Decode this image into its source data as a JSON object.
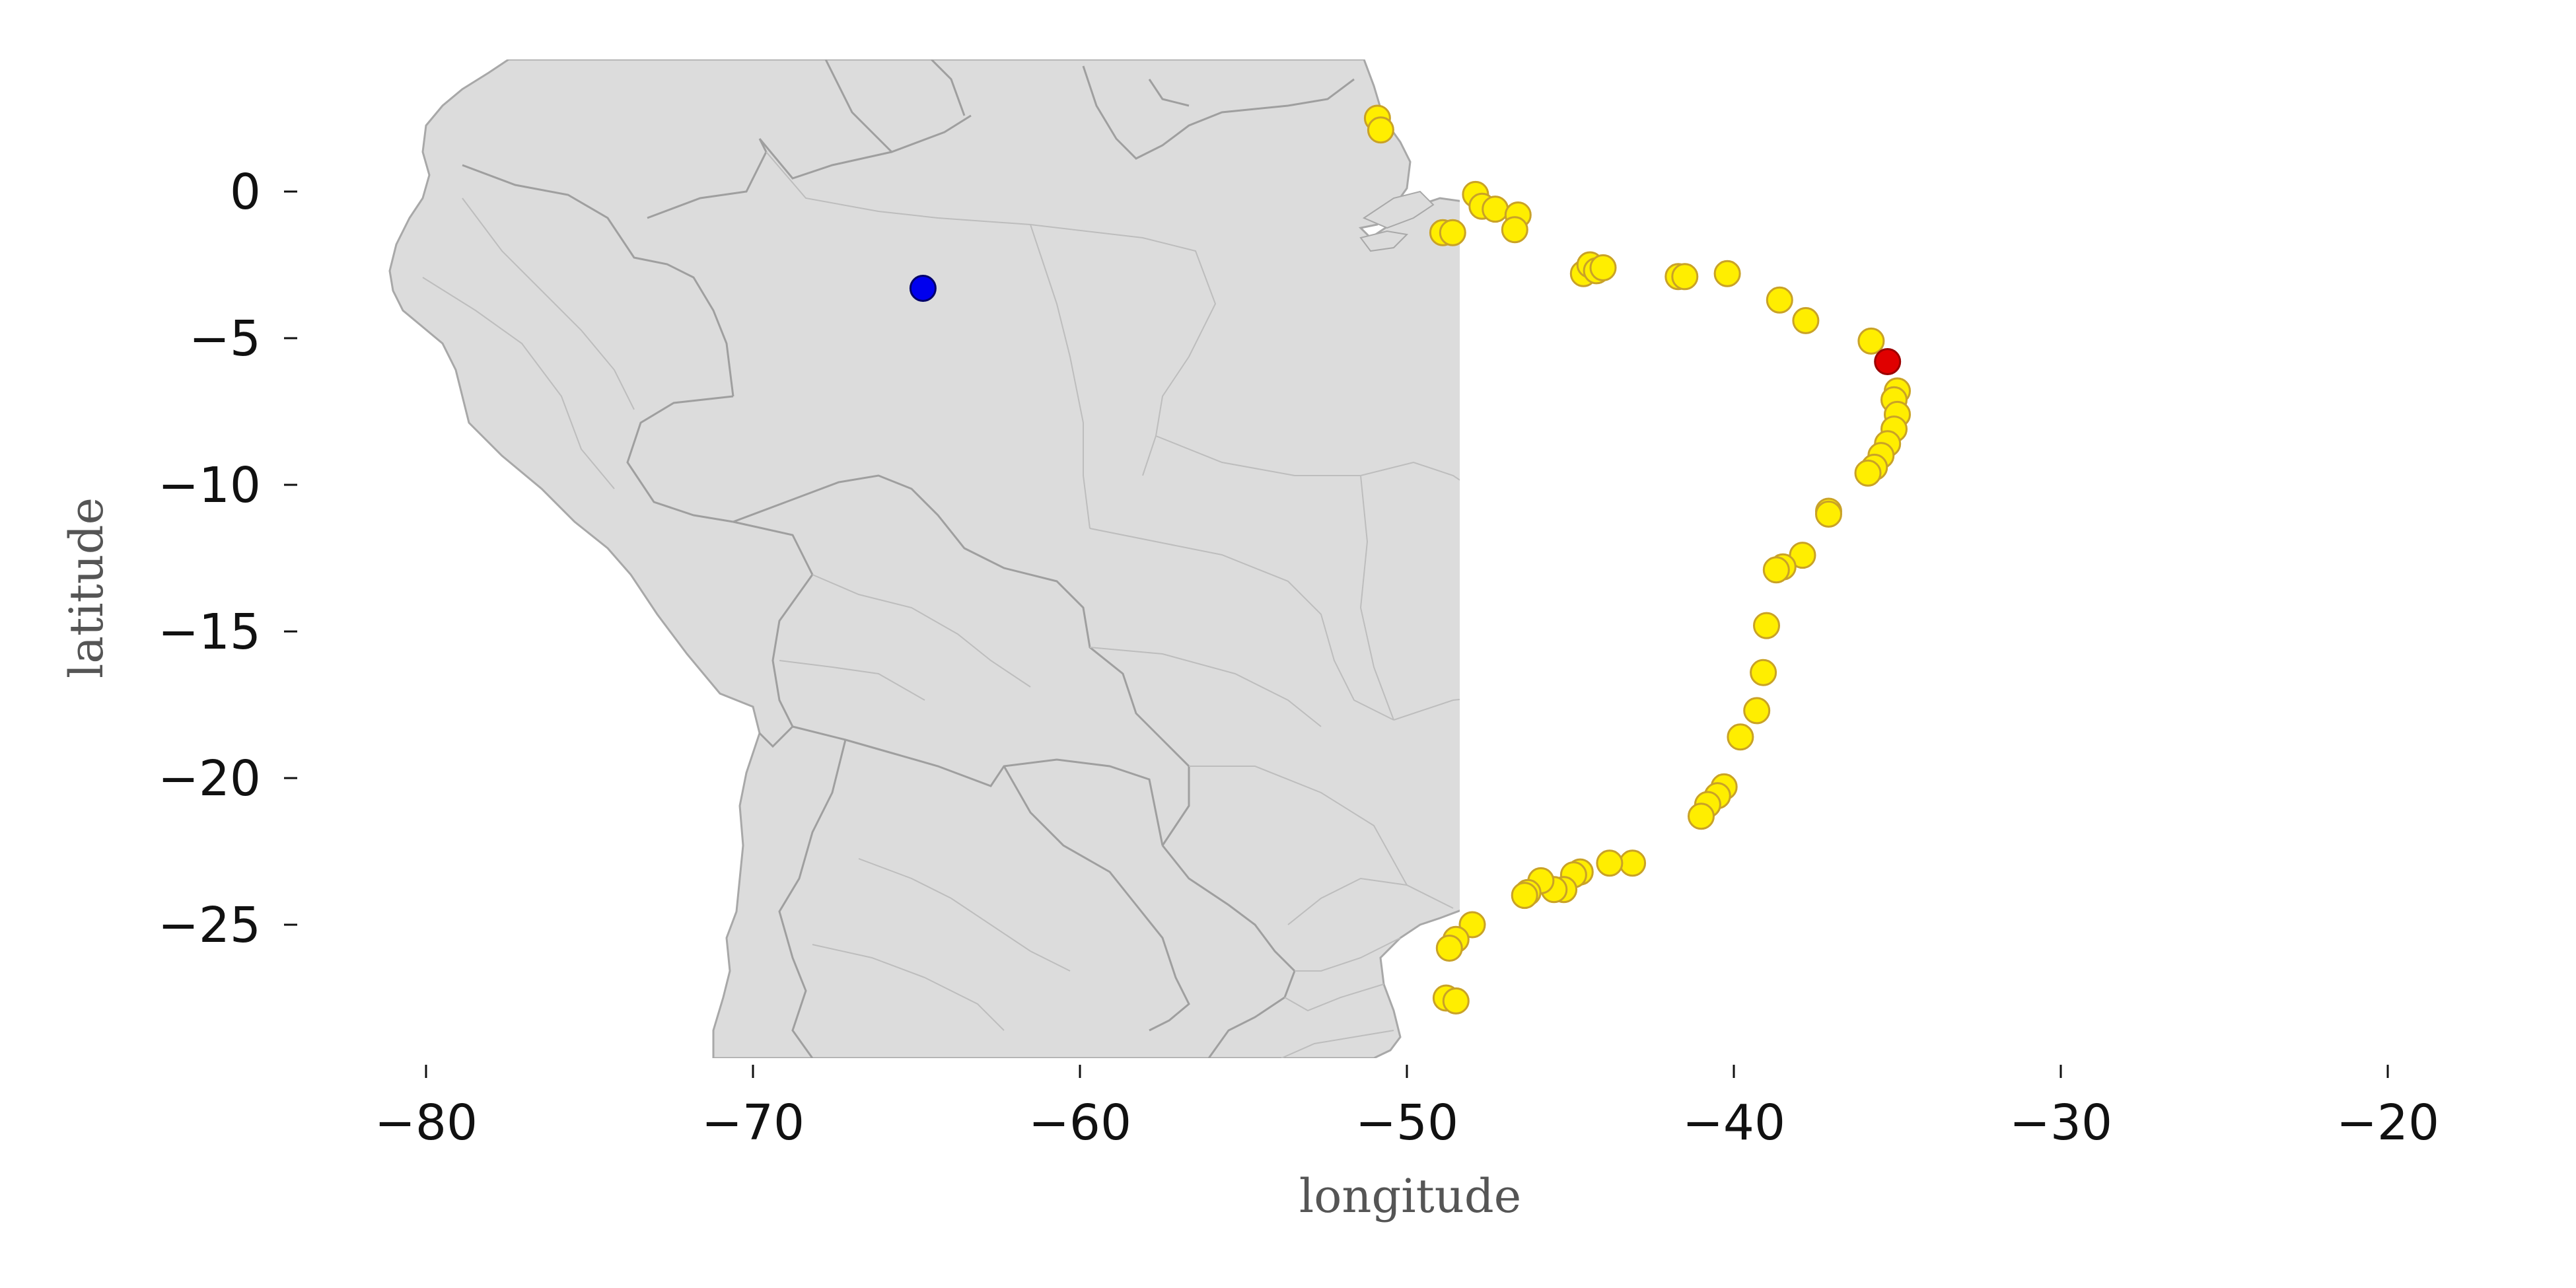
{
  "chart_data": {
    "type": "scatter",
    "xlabel": "longitude",
    "ylabel": "latitude",
    "xlim": [
      -83,
      -17
    ],
    "ylim": [
      -30,
      4.5
    ],
    "x_ticks": [
      -80,
      -70,
      -60,
      -50,
      -40,
      -30,
      -20
    ],
    "x_tick_labels": [
      "−80",
      "−70",
      "−60",
      "−50",
      "−40",
      "−30",
      "−20"
    ],
    "y_ticks": [
      0,
      -5,
      -10,
      -15,
      -20,
      -25
    ],
    "y_tick_labels": [
      "0",
      "−5",
      "−10",
      "−15",
      "−20",
      "−25"
    ],
    "grid": false,
    "basemap": "South America land area with country and state borders",
    "colors": {
      "land": "#dcdcdc",
      "border": "#a6a6a6",
      "coastal_points": "#ffee00",
      "coastal_points_edge": "#d4a017",
      "highlight_point": "#e00000",
      "inland_point": "#0000ee"
    },
    "series": [
      {
        "color": "#ffee00",
        "points": [
          [
            -50.9,
            2.5
          ],
          [
            -50.8,
            2.1
          ],
          [
            -47.9,
            -0.1
          ],
          [
            -47.7,
            -0.5
          ],
          [
            -47.3,
            -0.6
          ],
          [
            -46.6,
            -0.8
          ],
          [
            -46.7,
            -1.3
          ],
          [
            -48.9,
            -1.4
          ],
          [
            -48.6,
            -1.4
          ],
          [
            -44.6,
            -2.8
          ],
          [
            -44.4,
            -2.5
          ],
          [
            -44.2,
            -2.7
          ],
          [
            -44.0,
            -2.6
          ],
          [
            -41.7,
            -2.9
          ],
          [
            -41.5,
            -2.9
          ],
          [
            -40.2,
            -2.8
          ],
          [
            -38.6,
            -3.7
          ],
          [
            -37.8,
            -4.4
          ],
          [
            -35.8,
            -5.1
          ],
          [
            -35.0,
            -6.8
          ],
          [
            -35.1,
            -7.1
          ],
          [
            -35.0,
            -7.6
          ],
          [
            -35.1,
            -8.1
          ],
          [
            -35.3,
            -8.6
          ],
          [
            -35.5,
            -9.0
          ],
          [
            -35.7,
            -9.4
          ],
          [
            -35.9,
            -9.6
          ],
          [
            -37.1,
            -10.9
          ],
          [
            -37.1,
            -11.0
          ],
          [
            -37.9,
            -12.4
          ],
          [
            -38.5,
            -12.8
          ],
          [
            -38.7,
            -12.9
          ],
          [
            -39.0,
            -14.8
          ],
          [
            -39.1,
            -16.4
          ],
          [
            -39.3,
            -17.7
          ],
          [
            -39.8,
            -18.6
          ],
          [
            -40.3,
            -20.3
          ],
          [
            -40.5,
            -20.6
          ],
          [
            -40.8,
            -20.9
          ],
          [
            -41.0,
            -21.3
          ],
          [
            -43.1,
            -22.9
          ],
          [
            -43.8,
            -22.9
          ],
          [
            -44.7,
            -23.2
          ],
          [
            -44.9,
            -23.3
          ],
          [
            -45.2,
            -23.8
          ],
          [
            -45.5,
            -23.8
          ],
          [
            -45.9,
            -23.5
          ],
          [
            -46.3,
            -23.9
          ],
          [
            -46.4,
            -24.0
          ],
          [
            -48.0,
            -25.0
          ],
          [
            -48.5,
            -25.5
          ],
          [
            -48.7,
            -25.8
          ],
          [
            -48.8,
            -27.5
          ],
          [
            -48.5,
            -27.6
          ]
        ]
      },
      {
        "color": "#e00000",
        "points": [
          [
            -35.3,
            -5.8
          ]
        ]
      },
      {
        "color": "#0000ee",
        "points": [
          [
            -64.8,
            -3.3
          ]
        ]
      }
    ]
  }
}
